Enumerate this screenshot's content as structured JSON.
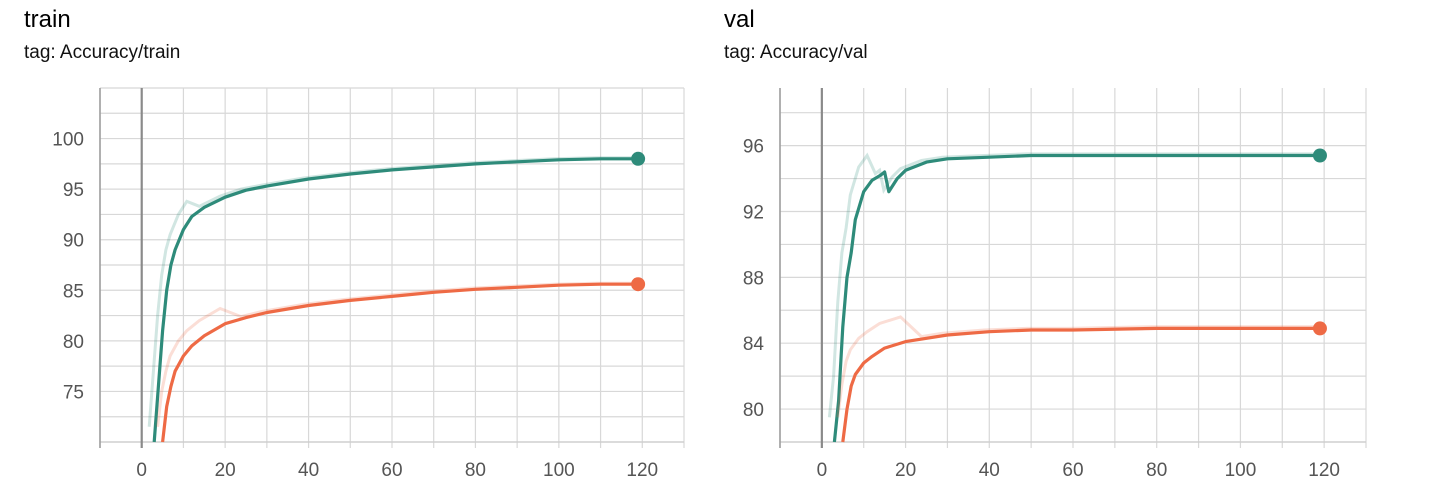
{
  "panels": [
    {
      "title": "train",
      "subtitle": "tag: Accuracy/train"
    },
    {
      "title": "val",
      "subtitle": "tag: Accuracy/val"
    }
  ],
  "colors": {
    "series_a": "#2e8b7a",
    "series_b": "#ee6a45",
    "grid": "#d8d8d8",
    "zero_axis": "#8a8a8a"
  },
  "chart_data": [
    {
      "type": "line",
      "title": "train",
      "subtitle": "tag: Accuracy/train",
      "xlim": [
        -10,
        130
      ],
      "ylim": [
        70,
        105
      ],
      "xticks": [
        0,
        20,
        40,
        60,
        80,
        100,
        120
      ],
      "yticks": [
        75,
        80,
        85,
        90,
        95,
        100
      ],
      "grid": true,
      "series": [
        {
          "color": "#2e8b7a",
          "x": [
            3,
            4,
            5,
            6,
            7,
            8,
            10,
            12,
            15,
            20,
            25,
            30,
            40,
            50,
            60,
            70,
            80,
            90,
            100,
            110,
            119
          ],
          "y": [
            70,
            75.5,
            81,
            85,
            87.5,
            89,
            91,
            92.3,
            93.2,
            94.2,
            94.9,
            95.3,
            96,
            96.5,
            96.9,
            97.2,
            97.5,
            97.7,
            97.9,
            98,
            98
          ]
        },
        {
          "color": "#ee6a45",
          "x": [
            5,
            6,
            7,
            8,
            10,
            12,
            15,
            20,
            25,
            30,
            40,
            50,
            60,
            70,
            80,
            90,
            100,
            110,
            119
          ],
          "y": [
            70,
            73.5,
            75.5,
            77,
            78.5,
            79.5,
            80.5,
            81.7,
            82.3,
            82.8,
            83.5,
            84,
            84.4,
            84.8,
            85.1,
            85.3,
            85.5,
            85.6,
            85.6
          ]
        }
      ]
    },
    {
      "type": "line",
      "title": "val",
      "subtitle": "tag: Accuracy/val",
      "xlim": [
        -10,
        130
      ],
      "ylim": [
        78,
        99.5
      ],
      "xticks": [
        0,
        20,
        40,
        60,
        80,
        100,
        120
      ],
      "yticks": [
        80,
        84,
        88,
        92,
        96
      ],
      "grid": true,
      "series": [
        {
          "color": "#2e8b7a",
          "x": [
            3,
            4,
            5,
            6,
            7,
            8,
            10,
            12,
            14,
            15,
            16,
            18,
            20,
            25,
            30,
            40,
            50,
            60,
            80,
            100,
            119
          ],
          "y": [
            78,
            80.5,
            85,
            88,
            89.5,
            91.5,
            93.2,
            93.9,
            94.2,
            94.4,
            93.2,
            94,
            94.5,
            95,
            95.2,
            95.3,
            95.4,
            95.4,
            95.4,
            95.4,
            95.4
          ]
        },
        {
          "color": "#ee6a45",
          "x": [
            5,
            6,
            7,
            8,
            10,
            12,
            15,
            20,
            25,
            30,
            40,
            50,
            60,
            80,
            100,
            119
          ],
          "y": [
            78,
            80,
            81.4,
            82.1,
            82.8,
            83.2,
            83.7,
            84.1,
            84.3,
            84.5,
            84.7,
            84.8,
            84.8,
            84.9,
            84.9,
            84.9
          ]
        }
      ]
    }
  ]
}
